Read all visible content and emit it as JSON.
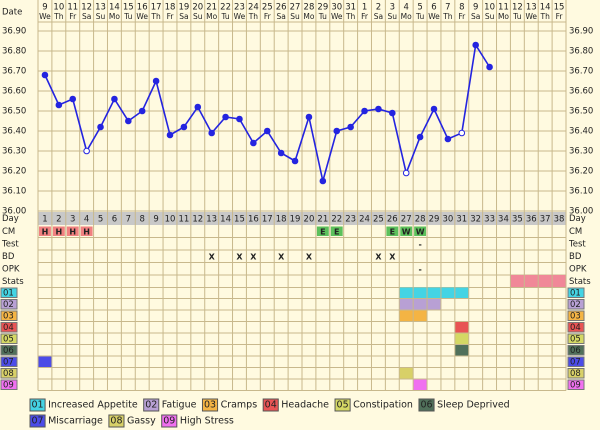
{
  "chart_data": {
    "type": "line",
    "date_label": "Date",
    "dates": [
      9,
      10,
      11,
      12,
      13,
      14,
      15,
      16,
      17,
      18,
      19,
      20,
      21,
      22,
      23,
      24,
      25,
      26,
      27,
      28,
      29,
      30,
      31,
      1,
      2,
      3,
      4,
      5,
      6,
      7,
      8,
      9,
      10,
      11,
      12,
      13,
      14,
      15
    ],
    "weekdays": [
      "We",
      "Th",
      "Fr",
      "Sa",
      "Su",
      "Mo",
      "Tu",
      "We",
      "Th",
      "Fr",
      "Sa",
      "Su",
      "Mo",
      "Tu",
      "We",
      "Th",
      "Fr",
      "Sa",
      "Su",
      "Mo",
      "Tu",
      "We",
      "Th",
      "Fr",
      "Sa",
      "Su",
      "Mo",
      "Tu",
      "We",
      "Th",
      "Fr",
      "Sa",
      "Su",
      "Mo",
      "Tu",
      "We",
      "Th",
      "Fr"
    ],
    "day_label": "Day",
    "days": [
      1,
      2,
      3,
      4,
      5,
      6,
      7,
      8,
      9,
      10,
      11,
      12,
      13,
      14,
      15,
      16,
      17,
      18,
      19,
      20,
      21,
      22,
      23,
      24,
      25,
      26,
      27,
      28,
      29,
      30,
      31,
      32,
      33,
      34,
      35,
      36,
      37,
      38
    ],
    "values": [
      36.68,
      36.53,
      36.56,
      36.3,
      36.42,
      36.56,
      36.45,
      36.5,
      36.65,
      36.38,
      36.42,
      36.52,
      36.39,
      36.47,
      36.46,
      36.34,
      36.4,
      36.29,
      36.25,
      36.47,
      36.15,
      36.4,
      36.42,
      36.5,
      36.51,
      36.49,
      36.19,
      36.37,
      36.51,
      36.36,
      36.39,
      36.83,
      36.72,
      null,
      null,
      null,
      null,
      null
    ],
    "hollow_points": [
      4,
      27,
      31
    ],
    "color": "#2424e0",
    "ylim": [
      36.0,
      36.9
    ],
    "yticks": [
      {
        "value": 36.0,
        "label": "36.00"
      },
      {
        "value": 36.1,
        "label": "36.10"
      },
      {
        "value": 36.2,
        "label": "36.20"
      },
      {
        "value": 36.3,
        "label": "36.30"
      },
      {
        "value": 36.4,
        "label": "36.40"
      },
      {
        "value": 36.5,
        "label": "36.50"
      },
      {
        "value": 36.6,
        "label": "36.60"
      },
      {
        "value": 36.7,
        "label": "36.70"
      },
      {
        "value": 36.8,
        "label": "36.80"
      },
      {
        "value": 36.9,
        "label": "36.90"
      }
    ],
    "grid": true,
    "rows": [
      {
        "label": "CM",
        "marks": [
          {
            "day": 1,
            "text": "H",
            "color": "#f08080"
          },
          {
            "day": 2,
            "text": "H",
            "color": "#f08080"
          },
          {
            "day": 3,
            "text": "H",
            "color": "#f08080"
          },
          {
            "day": 4,
            "text": "H",
            "color": "#f08080"
          },
          {
            "day": 21,
            "text": "E",
            "color": "#5cc05c"
          },
          {
            "day": 22,
            "text": "E",
            "color": "#5cc05c"
          },
          {
            "day": 26,
            "text": "E",
            "color": "#5cc05c"
          },
          {
            "day": 27,
            "text": "W",
            "color": "#5cc05c"
          },
          {
            "day": 28,
            "text": "W",
            "color": "#5cc05c"
          }
        ]
      },
      {
        "label": "Test",
        "marks": [
          {
            "day": 28,
            "text": "-"
          }
        ]
      },
      {
        "label": "BD",
        "marks": [
          {
            "day": 13,
            "text": "X"
          },
          {
            "day": 15,
            "text": "X"
          },
          {
            "day": 16,
            "text": "X"
          },
          {
            "day": 18,
            "text": "X"
          },
          {
            "day": 20,
            "text": "X"
          },
          {
            "day": 25,
            "text": "X"
          },
          {
            "day": 26,
            "text": "X"
          }
        ]
      },
      {
        "label": "OPK",
        "marks": [
          {
            "day": 28,
            "text": "-"
          }
        ]
      },
      {
        "label": "Stats",
        "spans": [
          {
            "start": 35,
            "end": 38,
            "color": "#f08898"
          }
        ]
      }
    ],
    "symptoms": [
      {
        "code": "01",
        "name": "Increased Appetite",
        "color": "#44d4e4",
        "days": [
          27,
          28,
          29,
          30,
          31
        ]
      },
      {
        "code": "02",
        "name": "Fatigue",
        "color": "#b8a0d4",
        "days": [
          27,
          28,
          29
        ]
      },
      {
        "code": "03",
        "name": "Cramps",
        "color": "#f4b444",
        "days": [
          27,
          28
        ]
      },
      {
        "code": "04",
        "name": "Headache",
        "color": "#e85454",
        "days": [
          31
        ]
      },
      {
        "code": "05",
        "name": "Constipation",
        "color": "#d4d864",
        "days": [
          31
        ]
      },
      {
        "code": "06",
        "name": "Sleep Deprived",
        "color": "#50705a",
        "days": [
          31
        ]
      },
      {
        "code": "07",
        "name": "Miscarriage",
        "color": "#4c4ce8",
        "days": [
          1
        ]
      },
      {
        "code": "08",
        "name": "Gassy",
        "color": "#d8d068",
        "days": [
          27
        ]
      },
      {
        "code": "09",
        "name": "High Stress",
        "color": "#f070f0",
        "days": [
          28
        ]
      }
    ]
  }
}
